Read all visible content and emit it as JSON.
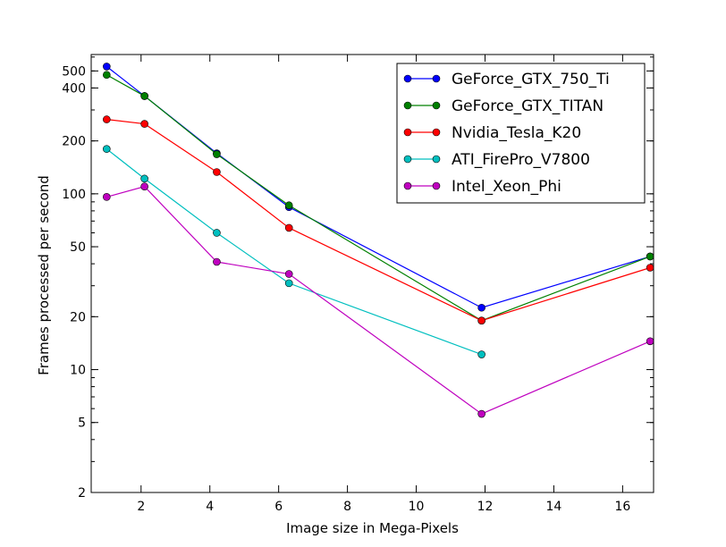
{
  "chart_data": {
    "type": "line",
    "title": "",
    "xlabel": "Image size in Mega-Pixels",
    "ylabel": "Frames processed per second",
    "xlim": [
      0.55,
      16.9
    ],
    "ylim": [
      2,
      620
    ],
    "yscale": "log",
    "x_ticks": [
      2,
      4,
      6,
      8,
      10,
      12,
      14,
      16
    ],
    "y_ticks": [
      2,
      5,
      10,
      20,
      50,
      100,
      200,
      400,
      500
    ],
    "y_tick_labels": [
      "2",
      "5",
      "10",
      "20",
      "50",
      "100",
      "200",
      "400",
      "500"
    ],
    "grid": false,
    "legend_position": "top-right",
    "x": [
      1.0,
      2.1,
      4.2,
      6.3,
      11.9,
      16.8
    ],
    "series": [
      {
        "name": "GeForce_GTX_750_Ti",
        "color": "#0000ff",
        "values": [
          530,
          360,
          170,
          84,
          22.5,
          44
        ]
      },
      {
        "name": "GeForce_GTX_TITAN",
        "color": "#008000",
        "values": [
          475,
          360,
          168,
          86,
          19,
          44
        ]
      },
      {
        "name": "Nvidia_Tesla_K20",
        "color": "#ff0000",
        "values": [
          265,
          250,
          133,
          64,
          19,
          38
        ]
      },
      {
        "name": "ATI_FirePro_V7800",
        "color": "#00bfbf",
        "values": [
          180,
          122,
          60,
          31,
          12.2,
          null
        ]
      },
      {
        "name": "Intel_Xeon_Phi",
        "color": "#bf00bf",
        "values": [
          96,
          110,
          41,
          35,
          5.6,
          14.5
        ]
      }
    ]
  }
}
